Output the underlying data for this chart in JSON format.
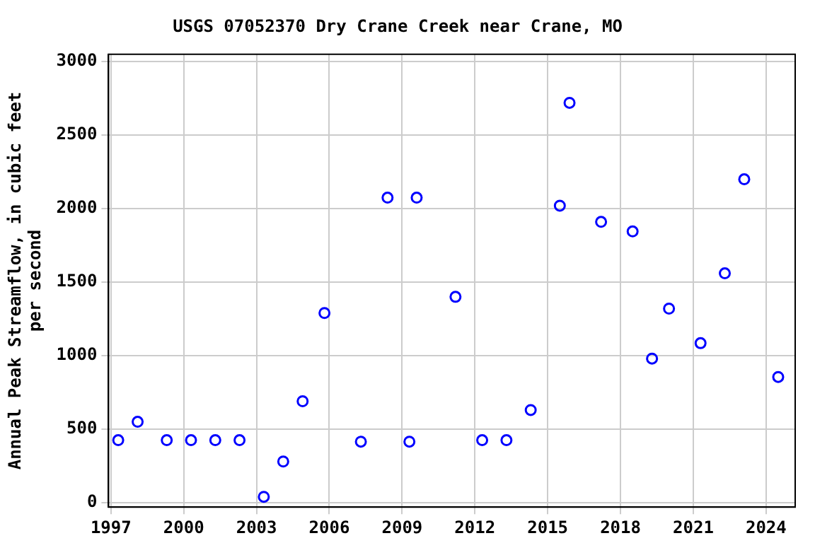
{
  "chart_data": {
    "type": "scatter",
    "title": "USGS 07052370 Dry Crane Creek near Crane, MO",
    "ylabel": "Annual Peak Streamflow, in cubic feet per second",
    "x": [
      1997.3,
      1998.1,
      1999.3,
      2000.3,
      2001.3,
      2002.3,
      2003.3,
      2004.1,
      2004.9,
      2005.8,
      2007.3,
      2008.4,
      2009.3,
      2009.6,
      2011.2,
      2012.3,
      2013.3,
      2014.3,
      2015.5,
      2015.9,
      2017.2,
      2018.5,
      2019.3,
      2020.0,
      2021.3,
      2022.3,
      2023.1,
      2024.5
    ],
    "series": [
      {
        "color": "#0000ff",
        "values": [
          425,
          550,
          425,
          425,
          425,
          425,
          40,
          280,
          690,
          1290,
          415,
          2075,
          415,
          2075,
          1400,
          425,
          425,
          630,
          2020,
          2720,
          1910,
          1845,
          980,
          1320,
          1085,
          1560,
          2200,
          855
        ]
      }
    ],
    "xlim": [
      1996.9,
      2025.2
    ],
    "xticks": [
      1997,
      2000,
      2003,
      2006,
      2009,
      2012,
      2015,
      2018,
      2021,
      2024
    ],
    "ylim": [
      -30,
      3050
    ],
    "yticks": [
      0,
      500,
      1000,
      1500,
      2000,
      2500,
      3000
    ],
    "grid": true,
    "marker": "circle",
    "legend": false
  }
}
